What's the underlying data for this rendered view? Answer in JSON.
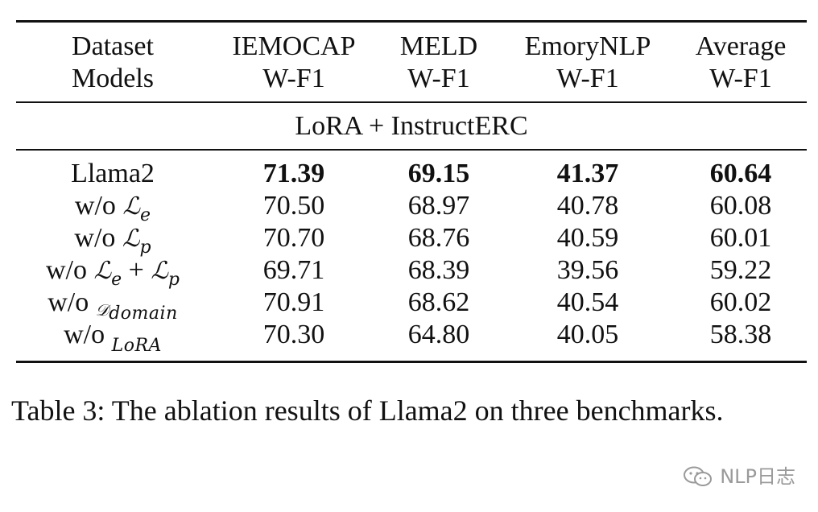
{
  "table": {
    "header_row1": [
      "Dataset",
      "IEMOCAP",
      "MELD",
      "EmoryNLP",
      "Average"
    ],
    "header_row2": [
      "Models",
      "W-F1",
      "W-F1",
      "W-F1",
      "W-F1"
    ],
    "section_label": "LoRA + InstructERC",
    "rows": [
      {
        "label_prefix": "Llama2",
        "values": [
          "71.39",
          "69.15",
          "41.37",
          "60.64"
        ],
        "bold": true
      },
      {
        "label_prefix": "w/o",
        "values": [
          "70.50",
          "68.97",
          "40.78",
          "60.08"
        ],
        "bold": false
      },
      {
        "label_prefix": "w/o",
        "values": [
          "70.70",
          "68.76",
          "40.59",
          "60.01"
        ],
        "bold": false
      },
      {
        "label_prefix": "w/o",
        "values": [
          "69.71",
          "68.39",
          "39.56",
          "59.22"
        ],
        "bold": false
      },
      {
        "label_prefix": "w/o",
        "values": [
          "70.91",
          "68.62",
          "40.54",
          "60.02"
        ],
        "bold": false
      },
      {
        "label_prefix": "w/o",
        "values": [
          "70.30",
          "64.80",
          "40.05",
          "58.38"
        ],
        "bold": false
      }
    ],
    "math_labels": {
      "row2": {
        "sym": "ℒ",
        "sub": "e"
      },
      "row3": {
        "sym": "ℒ",
        "sub": "p"
      },
      "row4": {
        "sym1": "ℒ",
        "sub1": "e",
        "op": "+",
        "sym2": "ℒ",
        "sub2": "p"
      },
      "row5": {
        "sym": "𝒟",
        "sub": "domain"
      },
      "row6": {
        "sub": "LoRA"
      }
    }
  },
  "caption": "Table 3: The ablation results of Llama2 on three benchmarks.",
  "watermark": {
    "text": "NLP日志",
    "icon": "wechat-icon"
  }
}
